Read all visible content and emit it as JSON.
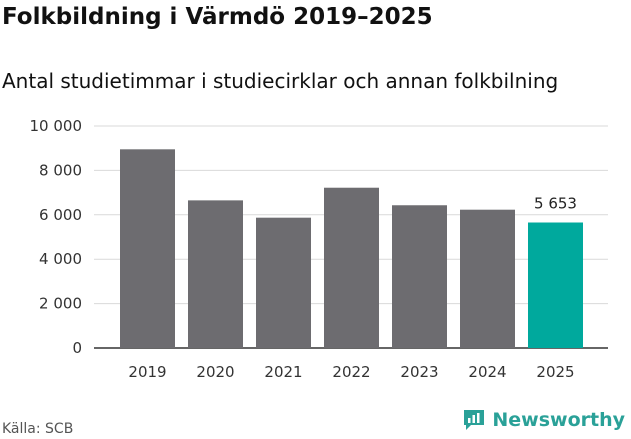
{
  "header": {
    "title": "Folkbildning i Värmdö 2019–2025",
    "subtitle": "Antal studietimmar i studiecirklar och annan folkbilning"
  },
  "footer": {
    "source": "Källa: SCB",
    "brand": "Newsworthy",
    "brand_icon": "newsworthy-logo-icon"
  },
  "colors": {
    "bar": "#6d6c70",
    "highlight": "#00a99d",
    "grid": "#d9d9d9",
    "axis": "#333333",
    "brand": "#2aa198"
  },
  "chart_data": {
    "type": "bar",
    "categories": [
      "2019",
      "2020",
      "2021",
      "2022",
      "2023",
      "2024",
      "2025"
    ],
    "values": [
      8950,
      6650,
      5870,
      7220,
      6430,
      6230,
      5653
    ],
    "highlight_index": 6,
    "data_labels": [
      null,
      null,
      null,
      null,
      null,
      null,
      "5 653"
    ],
    "yticks": [
      0,
      2000,
      4000,
      6000,
      8000,
      10000
    ],
    "ytick_labels": [
      "0",
      "2 000",
      "4 000",
      "6 000",
      "8 000",
      "10 000"
    ],
    "ylim": [
      0,
      10000
    ],
    "xlabel": "",
    "ylabel": "",
    "grid": true
  }
}
